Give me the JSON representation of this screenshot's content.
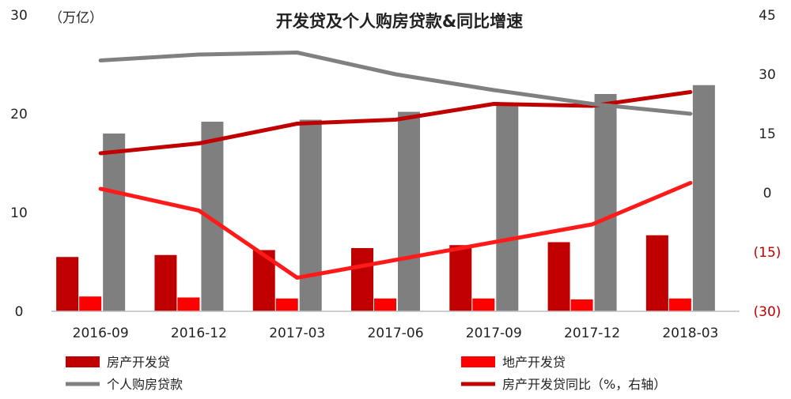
{
  "chart_data": {
    "type": "bar",
    "title": "开发贷及个人购房贷款&同比增速",
    "left_axis_unit": "（万亿）",
    "categories": [
      "2016-09",
      "2016-12",
      "2017-03",
      "2017-06",
      "2017-09",
      "2017-12",
      "2018-03"
    ],
    "left_axis": {
      "ylim": [
        0,
        30
      ],
      "ticks": [
        "0",
        "10",
        "20",
        "30"
      ]
    },
    "right_axis": {
      "ylim": [
        -30,
        45
      ],
      "ticks": [
        "(30)",
        "(15)",
        "0",
        "15",
        "30",
        "45"
      ]
    },
    "bar_series": [
      {
        "name": "房产开发贷",
        "color": "#c00000",
        "values": [
          5.5,
          5.7,
          6.2,
          6.4,
          6.7,
          7.0,
          7.7
        ]
      },
      {
        "name": "地产开发贷",
        "color": "#ff0000",
        "values": [
          1.5,
          1.4,
          1.3,
          1.3,
          1.3,
          1.2,
          1.3
        ]
      },
      {
        "name": "个人购房贷款",
        "color": "#7f7f7f",
        "values": [
          18.0,
          19.2,
          19.4,
          20.2,
          21.1,
          22.0,
          22.9
        ]
      }
    ],
    "line_series": [
      {
        "name": "房产开发贷同比（%，右轴）",
        "color": "#c00000",
        "axis": "right",
        "values": [
          10,
          12.5,
          17.5,
          18.5,
          22.5,
          22,
          25.5
        ]
      },
      {
        "color": "#ff1a1a",
        "axis": "right",
        "values": [
          1,
          -4.5,
          -21.5,
          -17,
          -12.5,
          -8,
          2.5
        ]
      },
      {
        "color": "#808080",
        "axis": "right",
        "values": [
          33.5,
          35,
          35.5,
          30,
          26,
          22.5,
          20
        ]
      }
    ],
    "legend": {
      "placement": "bottom",
      "items": [
        {
          "label": "房产开发贷",
          "kind": "bar",
          "color": "#c00000"
        },
        {
          "label": "地产开发贷",
          "kind": "bar",
          "color": "#ff0000"
        },
        {
          "label": "个人购房贷款",
          "kind": "line",
          "color": "#808080"
        },
        {
          "label": "房产开发贷同比（%，右轴）",
          "kind": "line",
          "color": "#c00000"
        }
      ]
    },
    "grid": false
  }
}
